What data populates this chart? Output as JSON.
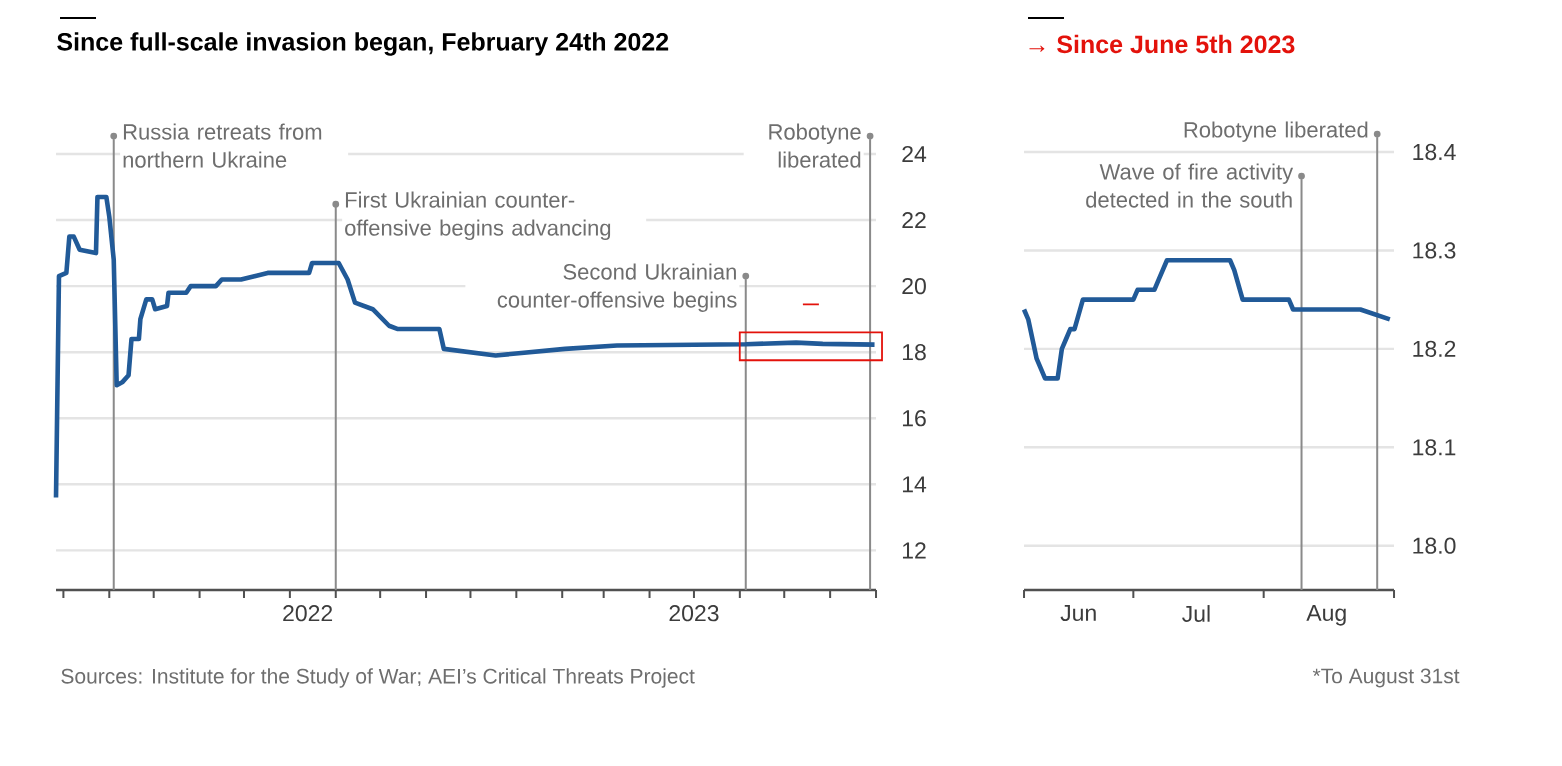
{
  "chart_data": [
    {
      "type": "line",
      "title": "Since full-scale invasion began, February 24th 2022",
      "grid": "y",
      "x": [
        "2022-02-24",
        "2022-02-26",
        "2022-03-03",
        "2022-03-05",
        "2022-03-08",
        "2022-03-12",
        "2022-03-23",
        "2022-03-24",
        "2022-03-30",
        "2022-04-01",
        "2022-04-04",
        "2022-04-06",
        "2022-04-10",
        "2022-04-14",
        "2022-04-16",
        "2022-04-21",
        "2022-04-22",
        "2022-04-26",
        "2022-04-30",
        "2022-05-02",
        "2022-05-10",
        "2022-05-11",
        "2022-05-23",
        "2022-05-26",
        "2022-06-12",
        "2022-06-16",
        "2022-06-29",
        "2022-07-17",
        "2022-08-14",
        "2022-08-16",
        "2022-09-03",
        "2022-09-09",
        "2022-09-14",
        "2022-09-26",
        "2022-10-07",
        "2022-10-13",
        "2022-11-10",
        "2022-11-13",
        "2022-12-18",
        "2023-02-03",
        "2023-03-10",
        "2023-06-05",
        "2023-07-09",
        "2023-07-27",
        "2023-08-31"
      ],
      "series": [
        {
          "color": "#215a98",
          "values": [
            13.6,
            20.3,
            20.4,
            21.5,
            21.5,
            21.1,
            21.0,
            22.7,
            22.7,
            22.1,
            20.8,
            17.0,
            17.1,
            17.3,
            18.4,
            18.4,
            19.0,
            19.6,
            19.6,
            19.3,
            19.4,
            19.8,
            19.8,
            20.0,
            20.0,
            20.2,
            20.2,
            20.4,
            20.4,
            20.7,
            20.7,
            20.2,
            19.5,
            19.3,
            18.8,
            18.7,
            18.7,
            18.1,
            17.9,
            18.1,
            18.2,
            18.24,
            18.29,
            18.25,
            18.23
          ]
        }
      ],
      "xlim": [
        "2022-02-24",
        "2023-09-01"
      ],
      "xticks": [
        {
          "value": "2022-03-01",
          "label": null
        },
        {
          "value": "2022-04-01",
          "label": null
        },
        {
          "value": "2022-05-01",
          "label": null
        },
        {
          "value": "2022-06-01",
          "label": null
        },
        {
          "value": "2022-07-01",
          "label": null
        },
        {
          "value": "2022-08-01",
          "label": null
        },
        {
          "value": "2022-09-01",
          "label": null
        },
        {
          "value": "2022-10-01",
          "label": null
        },
        {
          "value": "2022-11-01",
          "label": null
        },
        {
          "value": "2022-12-01",
          "label": null
        },
        {
          "value": "2023-01-01",
          "label": null
        },
        {
          "value": "2023-02-01",
          "label": null
        },
        {
          "value": "2023-03-01",
          "label": null
        },
        {
          "value": "2023-04-01",
          "label": null
        },
        {
          "value": "2023-05-01",
          "label": null
        },
        {
          "value": "2023-06-01",
          "label": null
        },
        {
          "value": "2023-07-01",
          "label": null
        },
        {
          "value": "2023-08-01",
          "label": null
        },
        {
          "value": "2023-09-01",
          "label": null
        },
        {
          "value": "2022-08-13",
          "label": "2022"
        },
        {
          "value": "2023-05-01",
          "label": "2023"
        }
      ],
      "ylim": [
        10.8,
        24
      ],
      "yticks": [
        12,
        14,
        16,
        18,
        20,
        22,
        24
      ],
      "ref_lines": [
        {
          "axis": "x",
          "value": "2022-04-04",
          "label": "Russia retreats from northern Ukraine",
          "color": "#8a8a8a"
        },
        {
          "axis": "x",
          "value": "2022-09-01",
          "label": "First Ukrainian counter-offensive begins advancing",
          "color": "#8a8a8a"
        },
        {
          "axis": "x",
          "value": "2023-06-05",
          "label": "Second Ukrainian counter-offensive begins",
          "color": "#8a8a8a"
        },
        {
          "axis": "x",
          "value": "2023-08-28",
          "label": "Robotyne liberated",
          "color": "#8a8a8a"
        }
      ],
      "annotations": [
        "Sources: Institute for the Study of War; AEI’s Critical Threats Project"
      ]
    },
    {
      "type": "line",
      "title": "→ Since June 5th 2023",
      "grid": "y",
      "x": [
        "2023-06-05",
        "2023-06-06",
        "2023-06-08",
        "2023-06-10",
        "2023-06-13",
        "2023-06-14",
        "2023-06-15",
        "2023-06-16",
        "2023-06-17",
        "2023-06-19",
        "2023-06-26",
        "2023-07-01",
        "2023-07-02",
        "2023-07-06",
        "2023-07-07",
        "2023-07-09",
        "2023-07-24",
        "2023-07-25",
        "2023-07-27",
        "2023-08-07",
        "2023-08-08",
        "2023-08-21",
        "2023-08-24",
        "2023-08-31"
      ],
      "series": [
        {
          "color": "#215a98",
          "values": [
            18.24,
            18.23,
            18.19,
            18.17,
            18.17,
            18.2,
            18.21,
            18.22,
            18.22,
            18.25,
            18.25,
            18.25,
            18.26,
            18.26,
            18.27,
            18.29,
            18.29,
            18.28,
            18.25,
            18.25,
            18.24,
            18.24,
            18.24,
            18.23
          ]
        }
      ],
      "xlim": [
        "2023-06-05",
        "2023-09-01"
      ],
      "xticks": [
        {
          "value": "2023-06-05",
          "label": null
        },
        {
          "value": "2023-07-01",
          "label": null
        },
        {
          "value": "2023-08-01",
          "label": null
        },
        {
          "value": "2023-09-01",
          "label": null
        },
        {
          "value": "2023-06-18",
          "label": "Jun"
        },
        {
          "value": "2023-07-16",
          "label": "Jul"
        },
        {
          "value": "2023-08-16",
          "label": "Aug"
        }
      ],
      "ylim": [
        17.955,
        18.4
      ],
      "yticks": [
        {
          "value": 18.0,
          "label": "18.0"
        },
        18.1,
        18.2,
        18.3,
        18.4
      ],
      "ref_lines": [
        {
          "axis": "x",
          "value": "2023-08-10",
          "label": "Wave of fire activity detected in the south",
          "color": "#8a8a8a"
        },
        {
          "axis": "x",
          "value": "2023-08-28",
          "label": "Robotyne liberated",
          "color": "#8a8a8a"
        }
      ],
      "annotations": [
        "*To August 31st"
      ]
    }
  ]
}
